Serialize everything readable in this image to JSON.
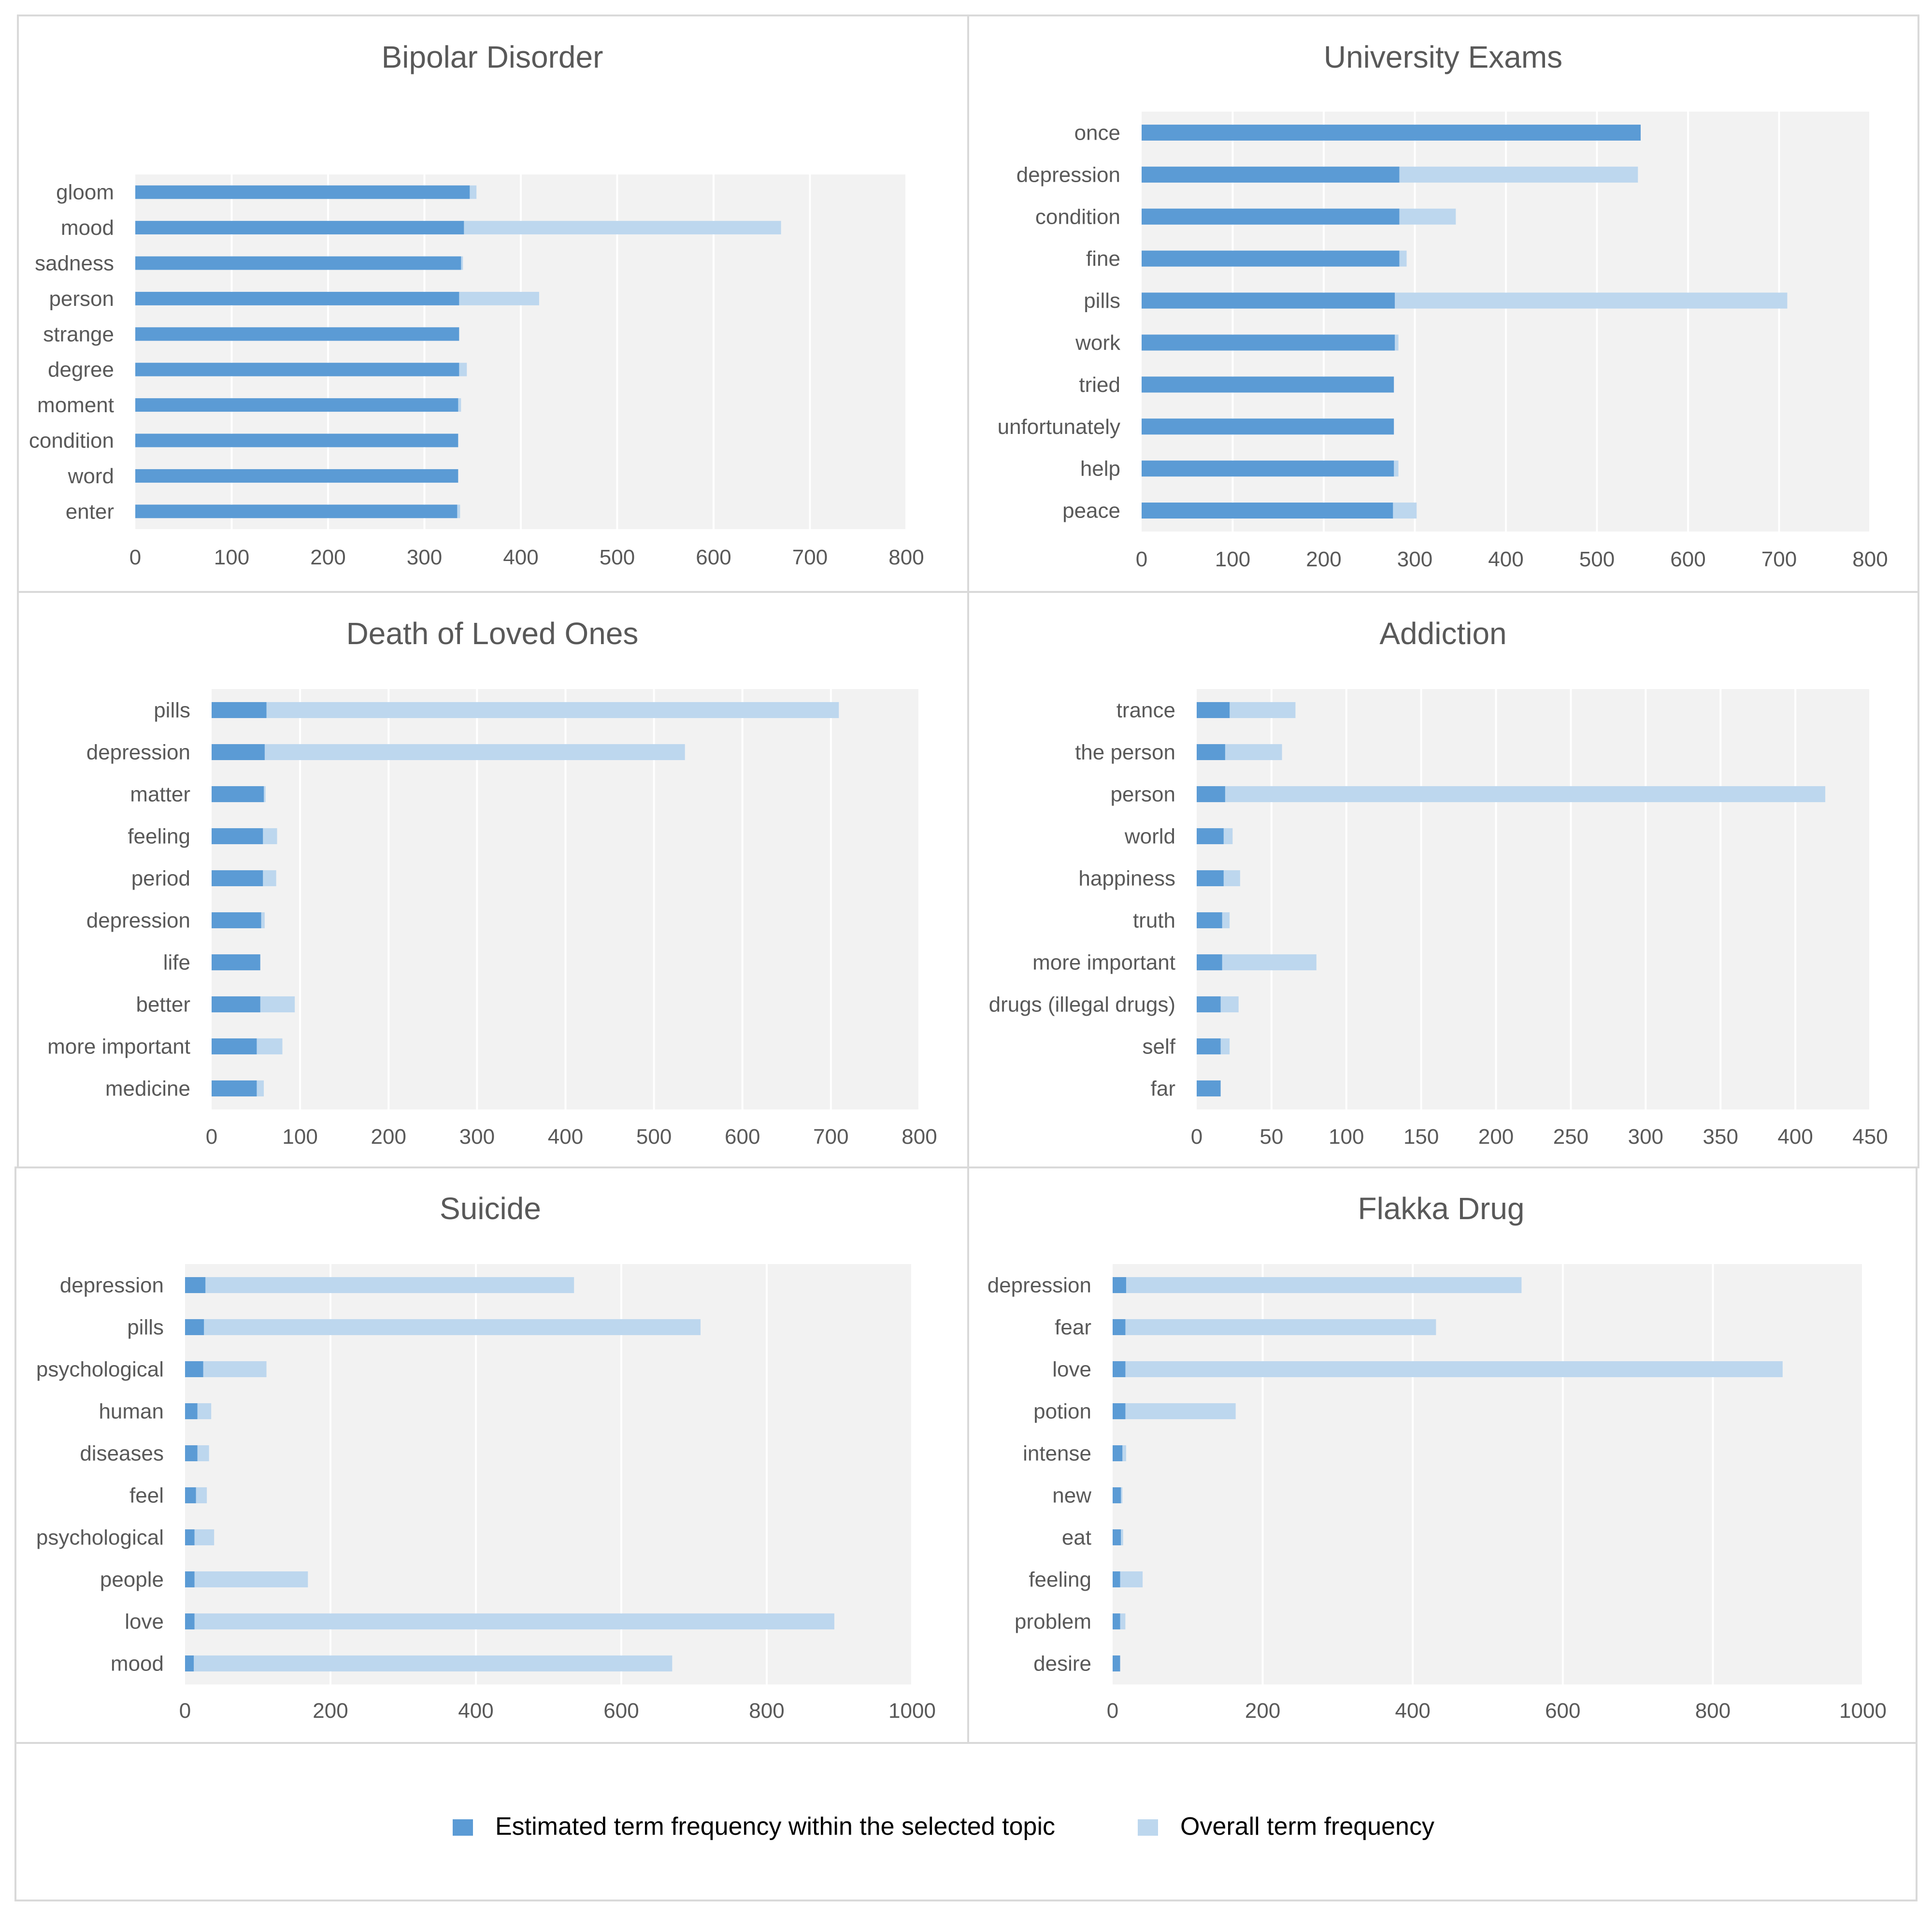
{
  "colors": {
    "topic": "#5B9BD5",
    "overall": "#BDD7EE",
    "plot_bg": "#F2F2F2",
    "grid": "#FFFFFF",
    "text": "#595959",
    "border": "#D9D9D9"
  },
  "legend": {
    "topic_label": "Estimated term frequency within the selected topic",
    "overall_label": "Overall term frequency"
  },
  "chart_data": [
    {
      "type": "bar",
      "orientation": "horizontal",
      "title": "Bipolar Disorder",
      "xlim": [
        0,
        800
      ],
      "xticks": [
        0,
        100,
        200,
        300,
        400,
        500,
        600,
        700,
        800
      ],
      "categories": [
        "gloom",
        "mood",
        "sadness",
        "person",
        "strange",
        "degree",
        "moment",
        "condition",
        "word",
        "enter"
      ],
      "series": [
        {
          "name": "Estimated term frequency within the selected topic",
          "values": [
            347,
            341,
            338,
            336,
            336,
            336,
            335,
            335,
            335,
            334
          ]
        },
        {
          "name": "Overall term frequency",
          "values": [
            354,
            670,
            340,
            419,
            336,
            344,
            338,
            335,
            335,
            337
          ]
        }
      ]
    },
    {
      "type": "bar",
      "orientation": "horizontal",
      "title": "University Exams",
      "xlim": [
        0,
        800
      ],
      "xticks": [
        0,
        100,
        200,
        300,
        400,
        500,
        600,
        700,
        800
      ],
      "categories": [
        "once",
        "depression",
        "condition",
        "fine",
        "pills",
        "work",
        "tried",
        "unfortunately",
        "help",
        "peace"
      ],
      "series": [
        {
          "name": "Estimated term frequency within the selected topic",
          "values": [
            548,
            283,
            283,
            283,
            278,
            278,
            277,
            277,
            277,
            276
          ]
        },
        {
          "name": "Overall term frequency",
          "values": [
            548,
            545,
            345,
            291,
            709,
            282,
            277,
            277,
            282,
            302
          ]
        }
      ]
    },
    {
      "type": "bar",
      "orientation": "horizontal",
      "title": "Death of Loved Ones",
      "xlim": [
        0,
        800
      ],
      "xticks": [
        0,
        100,
        200,
        300,
        400,
        500,
        600,
        700,
        800
      ],
      "categories": [
        "pills",
        "depression",
        "matter",
        "feeling",
        "period",
        "depression",
        "life",
        "better",
        "more important",
        "medicine"
      ],
      "series": [
        {
          "name": "Estimated term frequency within the selected topic",
          "values": [
            62,
            60,
            59,
            58,
            58,
            56,
            55,
            55,
            51,
            51
          ]
        },
        {
          "name": "Overall term frequency",
          "values": [
            709,
            535,
            61,
            74,
            73,
            60,
            55,
            94,
            80,
            59
          ]
        }
      ]
    },
    {
      "type": "bar",
      "orientation": "horizontal",
      "title": "Addiction",
      "xlim": [
        0,
        450
      ],
      "xticks": [
        0,
        50,
        100,
        150,
        200,
        250,
        300,
        350,
        400,
        450
      ],
      "categories": [
        "trance",
        "the person",
        "person",
        "world",
        "happiness",
        "truth",
        "more important",
        "drugs (illegal drugs)",
        "self",
        "far"
      ],
      "series": [
        {
          "name": "Estimated term frequency within the selected topic",
          "values": [
            22,
            19,
            19,
            18,
            18,
            17,
            17,
            16,
            16,
            16
          ]
        },
        {
          "name": "Overall term frequency",
          "values": [
            66,
            57,
            420,
            24,
            29,
            22,
            80,
            28,
            22,
            16
          ]
        }
      ]
    },
    {
      "type": "bar",
      "orientation": "horizontal",
      "title": "Suicide",
      "xlim": [
        0,
        1000
      ],
      "xticks": [
        0,
        200,
        400,
        600,
        800,
        1000
      ],
      "categories": [
        "depression",
        "pills",
        "psychological",
        "human",
        "diseases",
        "feel",
        "psychological",
        "people",
        "love",
        "mood"
      ],
      "series": [
        {
          "name": "Estimated term frequency within the selected topic",
          "values": [
            28,
            26,
            25,
            17,
            17,
            15,
            13,
            13,
            13,
            12
          ]
        },
        {
          "name": "Overall term frequency",
          "values": [
            535,
            709,
            112,
            36,
            33,
            30,
            40,
            169,
            893,
            670
          ]
        }
      ]
    },
    {
      "type": "bar",
      "orientation": "horizontal",
      "title": "Flakka Drug",
      "xlim": [
        0,
        1000
      ],
      "xticks": [
        0,
        200,
        400,
        600,
        800,
        1000
      ],
      "categories": [
        "depression",
        "fear",
        "love",
        "potion",
        "intense",
        "new",
        "eat",
        "feeling",
        "problem",
        "desire"
      ],
      "series": [
        {
          "name": "Estimated term frequency within the selected topic",
          "values": [
            18,
            17,
            17,
            17,
            13,
            11,
            11,
            10,
            10,
            10
          ]
        },
        {
          "name": "Overall term frequency",
          "values": [
            545,
            431,
            893,
            164,
            18,
            13,
            14,
            40,
            17,
            10
          ]
        }
      ]
    }
  ]
}
